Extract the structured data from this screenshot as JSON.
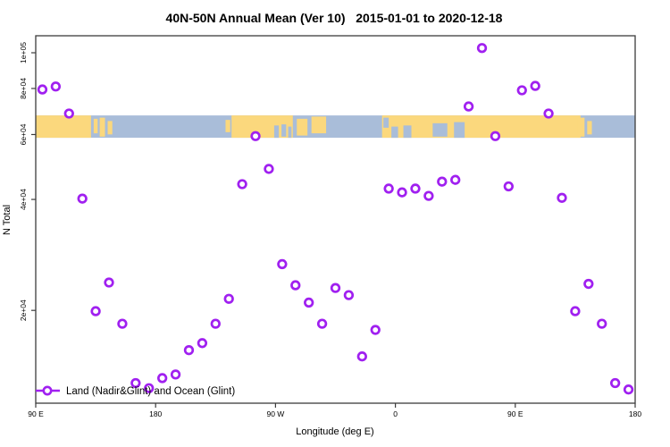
{
  "header": {
    "title": "40N-50N Annual Mean (Ver 10)   2015-01-01 to 2020-12-18"
  },
  "chart_data": {
    "type": "scatter",
    "title": "40N-50N Annual Mean (Ver 10)   2015-01-01 to 2020-12-18",
    "xlabel": "Longitude (deg E)",
    "ylabel": "N Total",
    "x_scale": "linear",
    "y_scale": "log",
    "xlim": [
      90,
      540
    ],
    "ylim": [
      11200,
      111200
    ],
    "grid": false,
    "x_ticks": [
      {
        "lon": 90,
        "label": "90 E"
      },
      {
        "lon": 180,
        "label": "180"
      },
      {
        "lon": 270,
        "label": "90 W"
      },
      {
        "lon": 360,
        "label": "0"
      },
      {
        "lon": 450,
        "label": "90 E"
      },
      {
        "lon": 540,
        "label": "180"
      }
    ],
    "y_ticks": [
      {
        "value": 20000,
        "label": "2e+04"
      },
      {
        "value": 40000,
        "label": "4e+04"
      },
      {
        "value": 60000,
        "label": "6e+04"
      },
      {
        "value": 80000,
        "label": "8e+04"
      },
      {
        "value": 100000,
        "label": "1e+05"
      }
    ],
    "series": [
      {
        "name": "Land (Nadir&Glint) and Ocean (Glint)",
        "color": "#A020F0",
        "marker": "open-circle",
        "x": [
          95,
          105,
          115,
          125,
          135,
          145,
          155,
          165,
          175,
          185,
          195,
          205,
          215,
          225,
          235,
          245,
          255,
          265,
          275,
          285,
          295,
          305,
          315,
          325,
          335,
          345,
          355,
          365,
          375,
          385,
          395,
          405,
          415,
          425,
          435,
          445,
          455,
          465,
          475,
          485,
          495,
          505,
          515,
          525,
          535
        ],
        "y": [
          79500,
          81000,
          68400,
          40200,
          19900,
          23800,
          18400,
          12700,
          12300,
          13100,
          13400,
          15600,
          16300,
          18400,
          21500,
          44000,
          59400,
          48400,
          26700,
          23400,
          21000,
          18400,
          23000,
          22000,
          15000,
          17700,
          42800,
          41800,
          42800,
          40900,
          44700,
          45200,
          71500,
          103000,
          59400,
          43400,
          79100,
          81300,
          68400,
          40400,
          19900,
          23600,
          18400,
          12700,
          12200
        ]
      }
    ],
    "legend": {
      "label": "Land (Nadir&Glint) and Ocean (Glint)",
      "position": "bottom-left"
    },
    "map_band": {
      "description": "40N-50N latitude strip map: land vs ocean along longitude",
      "y_range_values": [
        58800,
        67600
      ],
      "ocean_color": "#A9BDD9",
      "land_color": "#FBD87D",
      "land_segments": [
        [
          90,
          131.5
        ],
        [
          237,
          283
        ],
        [
          350,
          499
        ]
      ],
      "island_patches": [
        [
          133.5,
          136.5,
          0.15,
          0.8
        ],
        [
          138,
          142,
          0.1,
          0.95
        ],
        [
          144,
          147.5,
          0.25,
          0.85
        ],
        [
          232.5,
          236,
          0.2,
          0.75
        ],
        [
          286,
          294,
          0.15,
          0.9
        ],
        [
          297,
          308,
          0.05,
          0.8
        ],
        [
          493.5,
          496.5,
          0.15,
          0.8
        ],
        [
          498,
          502,
          0.1,
          0.95
        ],
        [
          504,
          507.5,
          0.25,
          0.85
        ]
      ],
      "water_patches": [
        [
          269,
          272.5,
          0.45,
          1.0
        ],
        [
          274.5,
          278,
          0.4,
          0.95
        ],
        [
          279.5,
          282,
          0.5,
          1.0
        ],
        [
          351,
          355,
          0.1,
          0.55
        ],
        [
          357,
          362,
          0.5,
          1.0
        ],
        [
          366,
          372,
          0.45,
          1.0
        ],
        [
          388,
          399,
          0.35,
          0.95
        ],
        [
          404,
          412,
          0.3,
          1.0
        ]
      ]
    },
    "axis_color": "#3c3c3c"
  }
}
